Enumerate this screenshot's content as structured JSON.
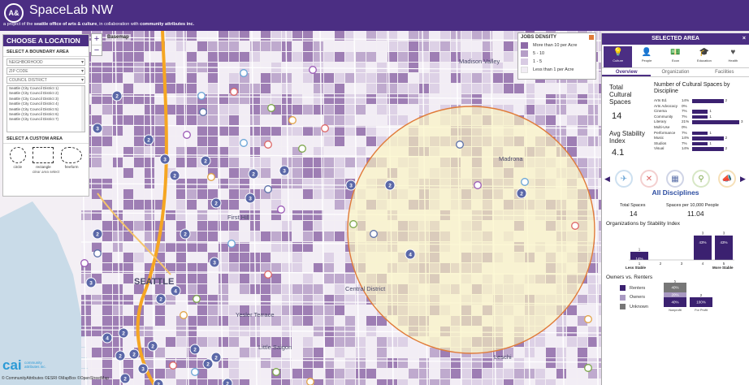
{
  "header": {
    "logo": "A&",
    "title": "SpaceLab NW",
    "subtitle_pre": "a project of the ",
    "subtitle_org1": "seattle office of arts & culture",
    "subtitle_mid": ", in collaboration with ",
    "subtitle_org2": "community attributes inc."
  },
  "left_panel": {
    "title": "CHOOSE A LOCATION",
    "boundary_title": "SELECT A BOUNDARY AREA",
    "neighborhood": "NEIGHBORHOOD",
    "zip": "ZIP CODE",
    "council": "COUNCIL DISTRICT",
    "districts": [
      "Seattle (City Council District 1)",
      "Seattle (City Council District 2)",
      "Seattle (City Council District 3)",
      "Seattle (City Council District 4)",
      "Seattle (City Council District 5)",
      "Seattle (City Council District 6)",
      "Seattle (City Council District 7)"
    ],
    "custom_title": "SELECT A CUSTOM AREA",
    "shape_circle": "circle",
    "shape_rect": "rectangle",
    "shape_free": "freeform",
    "clear": "clear area select"
  },
  "map": {
    "zoom_in": "+",
    "zoom_out": "−",
    "basemap": "Basemap",
    "labels": {
      "madison_valley": "Madison Valley",
      "first_hill": "First Hill",
      "seattle": "SEATTLE",
      "yesler": "Yesler Terrace",
      "central": "Central District",
      "little_saigon": "Little Saigon",
      "leschi": "Leschi",
      "madrona": "Madrona"
    },
    "cluster_counts": [
      "2",
      "3",
      "2",
      "3",
      "2",
      "2",
      "2",
      "3",
      "2",
      "3",
      "2",
      "3",
      "2",
      "2",
      "2",
      "3",
      "4",
      "2",
      "2",
      "2",
      "3",
      "2",
      "2",
      "2",
      "4",
      "2",
      "2",
      "3",
      "2",
      "4",
      "2",
      "2"
    ]
  },
  "legend": {
    "title": "JOBS DENSITY",
    "items": [
      {
        "label": "More than 10 per Acre",
        "color": "#8e6aa8"
      },
      {
        "label": "5 - 10",
        "color": "#b59ec7"
      },
      {
        "label": "1 - 5",
        "color": "#d8cbe3"
      },
      {
        "label": "Less than 1 per Acre",
        "color": "#f1ecf4"
      }
    ]
  },
  "right_panel": {
    "title": "SELECTED AREA",
    "close": "×",
    "icon_tabs": [
      "Culture",
      "People",
      "Econ",
      "Education",
      "Health"
    ],
    "tabs": [
      "Overview",
      "Organization",
      "Facilities"
    ],
    "total_label_1": "Total",
    "total_label_2": "Cultural",
    "total_label_3": "Spaces",
    "total_value": "14",
    "avg_label_1": "Avg Stability",
    "avg_label_2": "Index",
    "avg_value": "4.1",
    "disc_title": "Number of Cultural Spaces by Discipline",
    "disciplines": [
      {
        "name": "Arts Ed.",
        "pct": "14%",
        "count": "2",
        "value": 2
      },
      {
        "name": "Arts Advocacy",
        "pct": "0%",
        "count": "",
        "value": 0
      },
      {
        "name": "Cinema",
        "pct": "7%",
        "count": "1",
        "value": 1
      },
      {
        "name": "Community",
        "pct": "7%",
        "count": "1",
        "value": 1
      },
      {
        "name": "Literary",
        "pct": "21%",
        "count": "3",
        "value": 3
      },
      {
        "name": "Multi-Use",
        "pct": "0%",
        "count": "",
        "value": 0
      },
      {
        "name": "Performance",
        "pct": "7%",
        "count": "1",
        "value": 1
      },
      {
        "name": "Music",
        "pct": "14%",
        "count": "2",
        "value": 2
      },
      {
        "name": "Studios",
        "pct": "7%",
        "count": "1",
        "value": 1
      },
      {
        "name": "Visual",
        "pct": "14%",
        "count": "2",
        "value": 2
      }
    ],
    "all_disciplines": "All Disciplines",
    "total_spaces_label": "Total Spaces",
    "total_spaces_value": "14",
    "per_label": "Spaces per 10,000 People",
    "per_value": "11.04",
    "orgs_title": "Organizations by Stability Index",
    "stability": {
      "less": "Less Stable",
      "more": "More Stable",
      "bars": [
        {
          "axis": "1",
          "value": 1,
          "count": "1",
          "pct": "14%"
        },
        {
          "axis": "2",
          "value": 0,
          "count": "",
          "pct": ""
        },
        {
          "axis": "3",
          "value": 0,
          "count": "",
          "pct": ""
        },
        {
          "axis": "4",
          "value": 3,
          "count": "3",
          "pct": "43%"
        },
        {
          "axis": "5",
          "value": 3,
          "count": "3",
          "pct": "43%"
        }
      ]
    },
    "owners_title": "Owners vs. Renters",
    "owners_legend": [
      {
        "label": "Renters",
        "color": "#3b2170"
      },
      {
        "label": "Owners",
        "color": "#a999c2"
      },
      {
        "label": "Unknown",
        "color": "#777777"
      }
    ],
    "owners_bars": {
      "left_label": "Nonprofit",
      "right_label": "For Profit",
      "left": [
        {
          "pct": "40%"
        },
        {
          "pct": "20%"
        },
        {
          "pct": "40%"
        }
      ],
      "right": [
        {
          "pct": "100%"
        }
      ],
      "left_count": "5",
      "right_count": "2"
    }
  },
  "footer": {
    "cai": "cai",
    "cai_sub_1": "community",
    "cai_sub_2": "attributes inc.",
    "credit": "© CommunityAttributes ©ESRI ©MapBox ©OpenStreetMap"
  }
}
